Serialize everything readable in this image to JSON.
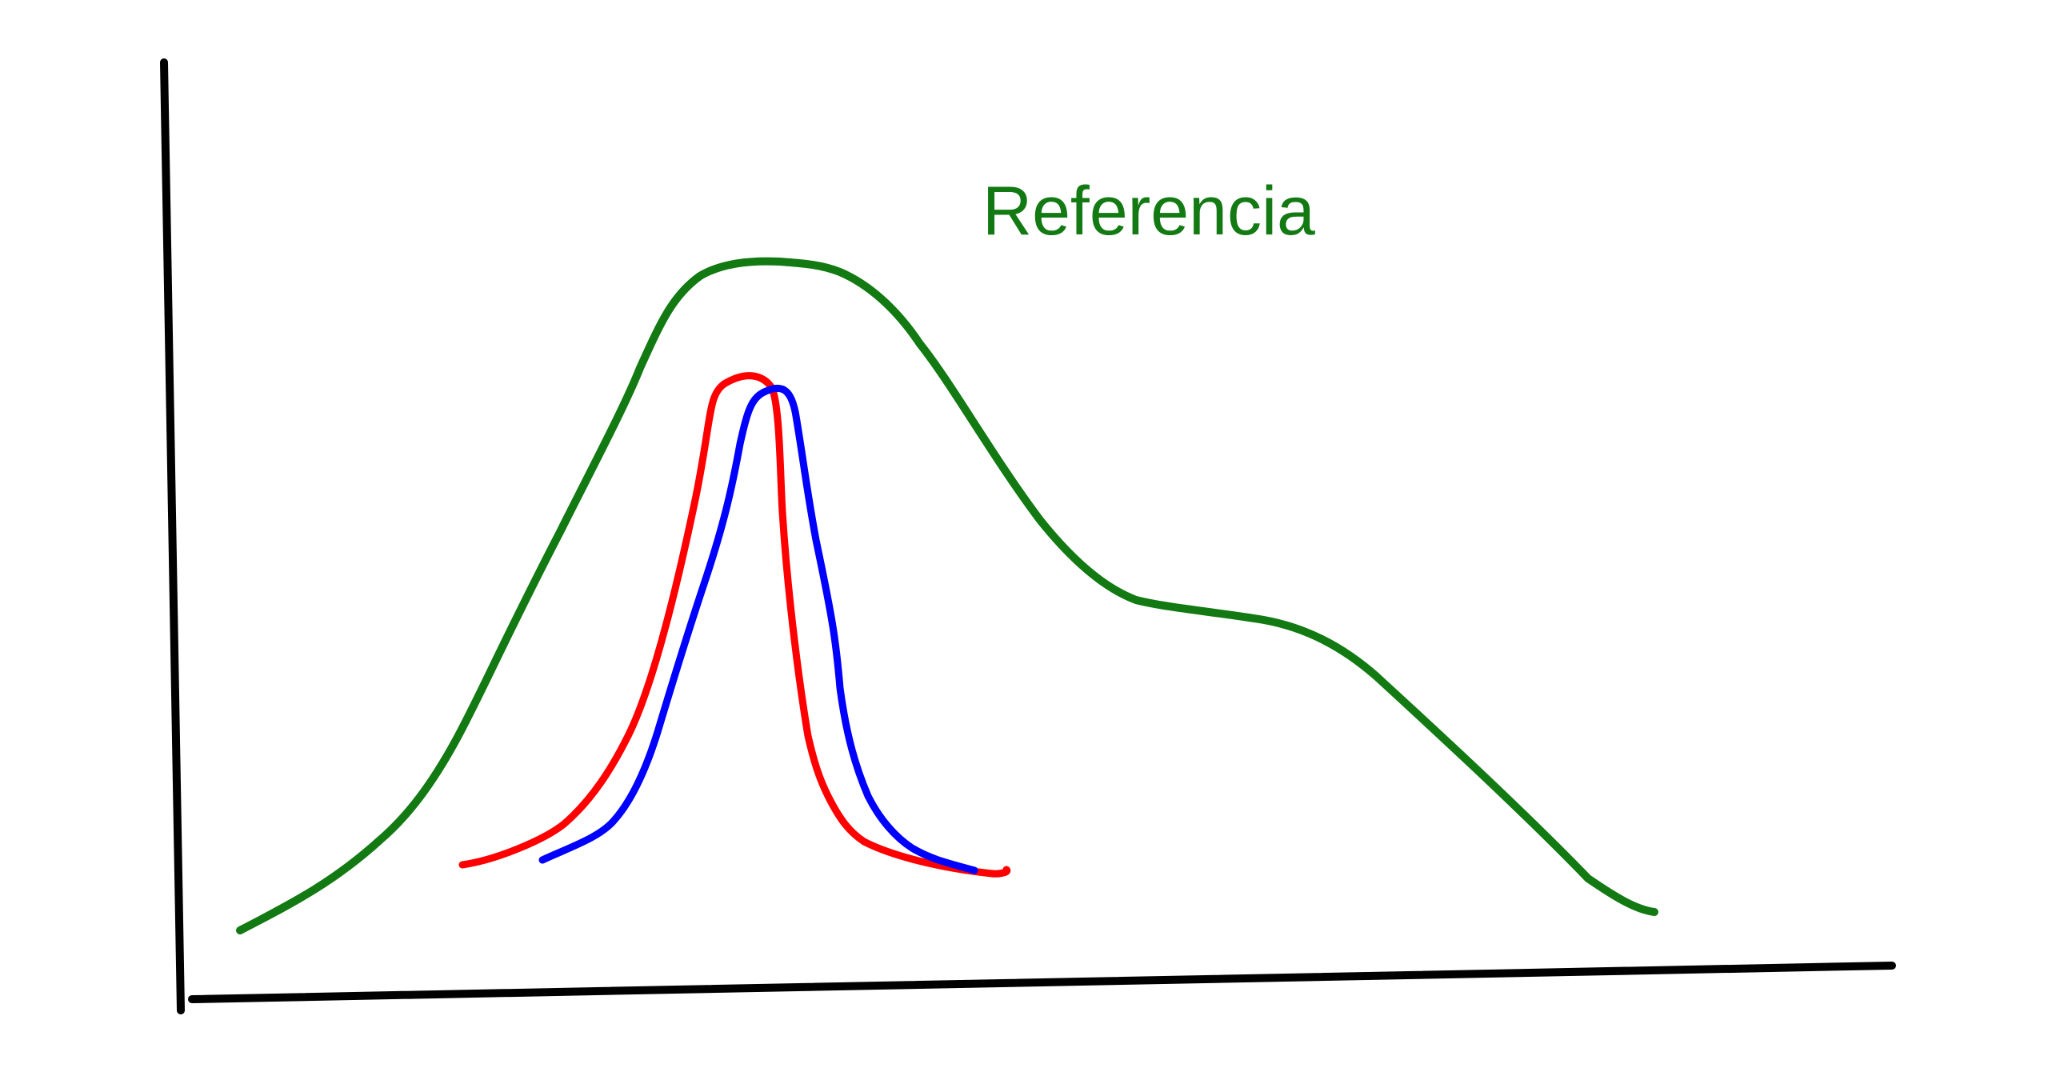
{
  "colors": {
    "axes": "#000000",
    "reference": "#137a13",
    "red_curve": "#ff0000",
    "blue_curve": "#0000ff",
    "background": "#ffffff"
  },
  "labels": {
    "reference": "Referencia"
  }
}
